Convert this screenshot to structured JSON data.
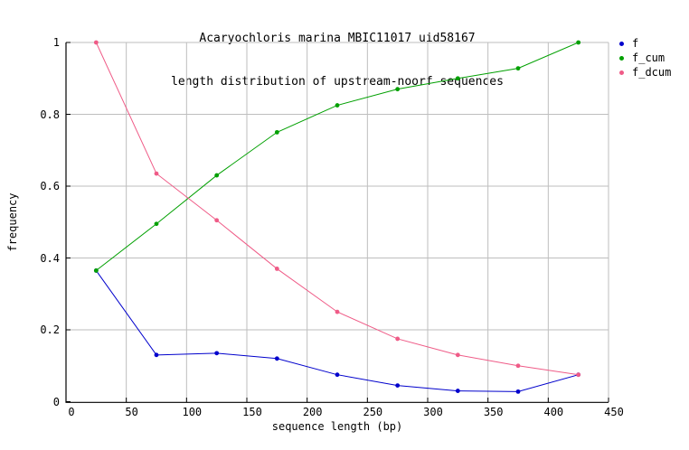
{
  "chart": {
    "title_line1": "Acaryochloris marina MBIC11017 uid58167",
    "title_line2": "length distribution of upstream-noorf sequences",
    "xlabel": "sequence length (bp)",
    "ylabel": "frequency"
  },
  "chart_data": {
    "type": "line",
    "title": "Acaryochloris marina MBIC11017 uid58167 length distribution of upstream-noorf sequences",
    "xlabel": "sequence length (bp)",
    "ylabel": "frequency",
    "xlim": [
      0,
      450
    ],
    "ylim": [
      0,
      1
    ],
    "x_ticks": [
      0,
      50,
      100,
      150,
      200,
      250,
      300,
      350,
      400,
      450
    ],
    "x_tick_labels": [
      "0",
      "50",
      "100",
      "150",
      "200",
      "250",
      "300",
      "350",
      "400",
      "450"
    ],
    "y_ticks": [
      0,
      0.2,
      0.4,
      0.6,
      0.8,
      1
    ],
    "y_tick_labels": [
      "0",
      "0.2",
      "0.4",
      "0.6",
      "0.8",
      "1"
    ],
    "grid": true,
    "legend_position": "outside-top-right",
    "x": [
      25,
      75,
      125,
      175,
      225,
      275,
      325,
      375,
      425
    ],
    "series": [
      {
        "name": "f",
        "color": "#0000cc",
        "marker": "circle",
        "values": [
          0.365,
          0.13,
          0.135,
          0.12,
          0.075,
          0.045,
          0.03,
          0.028,
          0.075
        ]
      },
      {
        "name": "f_cum",
        "color": "#00a000",
        "marker": "circle",
        "values": [
          0.365,
          0.495,
          0.63,
          0.75,
          0.825,
          0.87,
          0.9,
          0.928,
          1.0
        ]
      },
      {
        "name": "f_dcum",
        "color": "#ef5b87",
        "marker": "circle",
        "values": [
          1.0,
          0.635,
          0.505,
          0.37,
          0.25,
          0.175,
          0.13,
          0.1,
          0.075
        ]
      }
    ],
    "colors": {
      "grid": "#bebebe",
      "axis": "#000000",
      "background": "#ffffff"
    }
  }
}
